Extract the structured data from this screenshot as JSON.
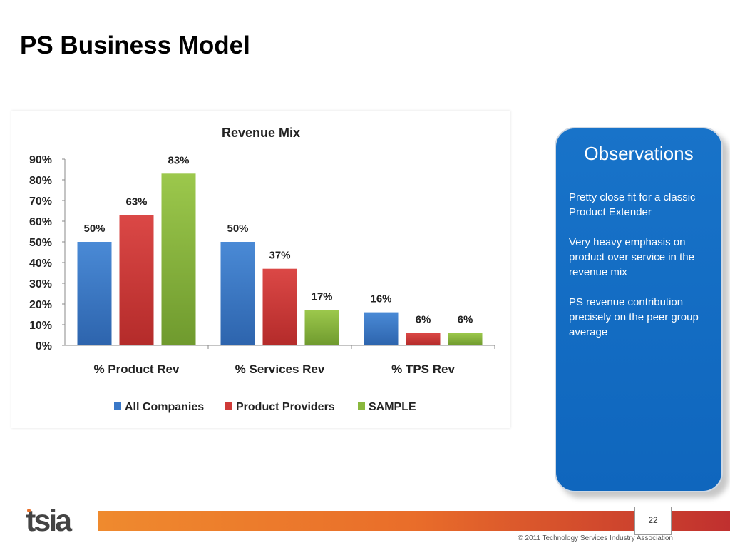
{
  "slide": {
    "title": "PS Business Model",
    "page_number": "22",
    "copyright": "© 2011 Technology Services Industry Association"
  },
  "logo": {
    "text": "tsia",
    "accent_color": "#e8702a"
  },
  "observations": {
    "title": "Observations",
    "items": [
      "Pretty close fit for a classic Product Extender",
      "Very heavy emphasis on product over service in the revenue mix",
      "PS revenue contribution precisely on the peer group average"
    ]
  },
  "chart_data": {
    "type": "bar",
    "title": "Revenue Mix",
    "categories": [
      "% Product Rev",
      "% Services Rev",
      "% TPS Rev"
    ],
    "series": [
      {
        "name": "All Companies",
        "values": [
          50,
          50,
          16
        ],
        "labels": [
          "50%",
          "50%",
          "16%"
        ],
        "color": "#3a78c8"
      },
      {
        "name": "Product Providers",
        "values": [
          63,
          37,
          6
        ],
        "labels": [
          "63%",
          "37%",
          "6%"
        ],
        "color": "#cf3a38"
      },
      {
        "name": "SAMPLE",
        "values": [
          83,
          17,
          6
        ],
        "labels": [
          "83%",
          "17%",
          "6%"
        ],
        "color": "#8ab83e"
      }
    ],
    "ylim": [
      0,
      90
    ],
    "yticks": [
      "0%",
      "10%",
      "20%",
      "30%",
      "40%",
      "50%",
      "60%",
      "70%",
      "80%",
      "90%"
    ],
    "grid": false,
    "legend": "bottom"
  }
}
